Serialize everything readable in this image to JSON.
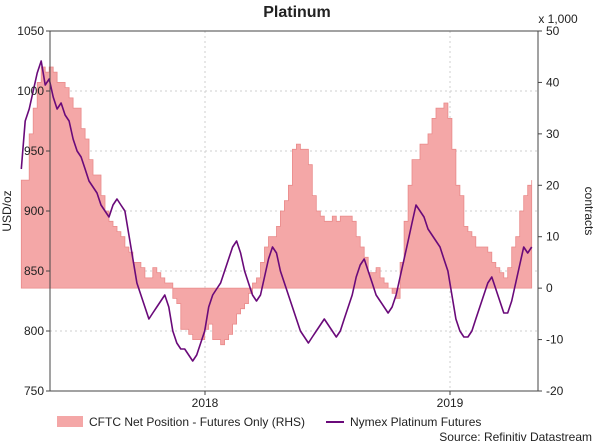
{
  "chart_data": {
    "type": "area+line",
    "title": "Platinum",
    "source": "Source: Refinitiv Datastream",
    "x_axis": {
      "ticks": [
        "2018",
        "2019"
      ]
    },
    "y_left": {
      "label": "USD/oz",
      "min": 750,
      "max": 1050,
      "ticks": [
        750,
        800,
        850,
        900,
        950,
        1000,
        1050
      ]
    },
    "y_right": {
      "label": "contracts",
      "unit": "x 1,000",
      "min": -20,
      "max": 50,
      "ticks": [
        -20,
        -10,
        0,
        10,
        20,
        30,
        40,
        50
      ]
    },
    "grid": true,
    "legend": {
      "position": "bottom"
    },
    "series": [
      {
        "name": "CFTC Net Position - Futures Only (RHS)",
        "kind": "area",
        "axis": "right",
        "color": "#f4a7a7",
        "edge": "#e98a8a",
        "date_range": [
          "2017-04",
          "2019-05"
        ],
        "values": [
          21,
          21,
          30,
          35,
          40,
          43,
          42,
          43,
          42,
          40,
          40,
          39,
          37,
          35,
          35,
          31,
          29,
          25,
          22,
          22,
          18,
          15,
          13,
          12,
          11,
          10,
          8,
          7,
          5,
          5,
          4,
          2,
          2,
          4,
          3,
          2,
          1,
          1,
          -2,
          -3,
          -8,
          -8,
          -9,
          -10,
          -10,
          -10,
          -8,
          -7,
          -10,
          -10,
          -11,
          -10,
          -9,
          -7,
          -5,
          -4,
          -3,
          -1,
          1,
          2,
          5,
          8,
          10,
          10,
          12,
          15,
          17,
          20,
          27,
          28,
          27,
          27,
          24,
          18,
          15,
          14,
          13,
          13,
          14,
          13,
          14,
          14,
          14,
          13,
          10,
          8,
          6,
          3,
          3,
          4,
          2,
          1,
          0,
          -1,
          -2,
          5,
          13,
          20,
          25,
          25,
          28,
          28,
          30,
          33,
          35,
          35,
          36,
          33,
          27,
          20,
          18,
          12,
          11,
          10,
          8,
          8,
          8,
          7,
          5,
          4,
          3,
          2,
          4,
          8,
          10,
          15,
          18,
          20,
          21
        ]
      },
      {
        "name": "Nymex Platinum Futures",
        "kind": "line",
        "axis": "left",
        "color": "#6a0a7a",
        "date_range": [
          "2017-04",
          "2019-05"
        ],
        "values": [
          935,
          975,
          985,
          1000,
          1015,
          1025,
          1005,
          1010,
          995,
          985,
          990,
          980,
          975,
          960,
          950,
          945,
          935,
          925,
          920,
          915,
          905,
          900,
          895,
          905,
          910,
          905,
          900,
          880,
          860,
          840,
          830,
          820,
          810,
          815,
          820,
          825,
          830,
          820,
          800,
          790,
          785,
          785,
          780,
          775,
          780,
          790,
          800,
          820,
          830,
          835,
          840,
          850,
          860,
          870,
          875,
          865,
          850,
          840,
          830,
          825,
          830,
          845,
          860,
          870,
          865,
          850,
          840,
          830,
          820,
          810,
          800,
          795,
          790,
          795,
          800,
          805,
          810,
          805,
          800,
          795,
          800,
          810,
          820,
          830,
          845,
          855,
          860,
          850,
          840,
          830,
          825,
          820,
          815,
          820,
          830,
          845,
          860,
          875,
          890,
          905,
          900,
          895,
          885,
          880,
          875,
          870,
          860,
          850,
          830,
          810,
          800,
          795,
          795,
          800,
          810,
          820,
          830,
          840,
          845,
          835,
          825,
          815,
          815,
          825,
          840,
          855,
          870,
          865,
          870
        ]
      }
    ]
  }
}
